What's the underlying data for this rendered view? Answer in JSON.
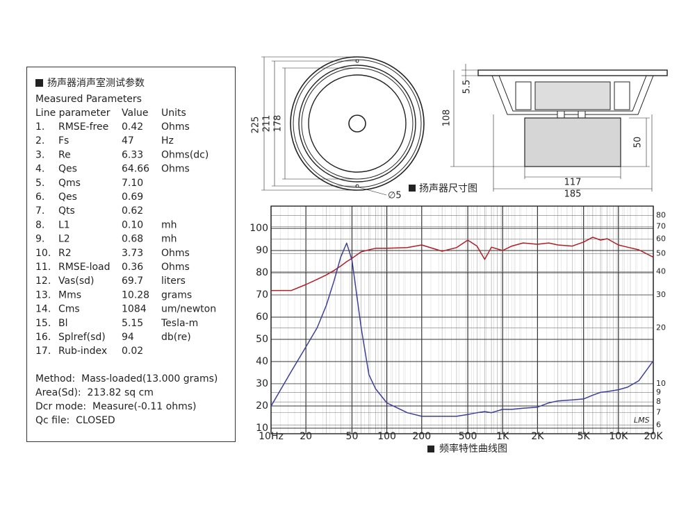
{
  "parameters": {
    "title": "扬声器消声室测试参数",
    "subtitle": "Measured Parameters",
    "header": [
      "Line parameter",
      "Value",
      "Units"
    ],
    "rows": [
      [
        "1.",
        "RMSE-free",
        "0.42",
        "Ohms"
      ],
      [
        "2.",
        "Fs",
        "47",
        "Hz"
      ],
      [
        "3.",
        "Re",
        "6.33",
        "Ohms(dc)"
      ],
      [
        "4.",
        "Qes",
        "64.66",
        "Ohms"
      ],
      [
        "5.",
        "Qms",
        "7.10",
        ""
      ],
      [
        "6.",
        "Qes",
        "0.69",
        ""
      ],
      [
        "7.",
        "Qts",
        "0.62",
        ""
      ],
      [
        "8.",
        "L1",
        "0.10",
        "mh"
      ],
      [
        "9.",
        "L2",
        "0.68",
        "mh"
      ],
      [
        "10.",
        "R2",
        "3.73",
        "Ohms"
      ],
      [
        "11.",
        "RMSE-load",
        "0.36",
        "Ohms"
      ],
      [
        "12.",
        "Vas(sd)",
        "69.7",
        "liters"
      ],
      [
        "13.",
        "Mms",
        "10.28",
        "grams"
      ],
      [
        "14.",
        "Cms",
        "1084",
        "um/newton"
      ],
      [
        "15.",
        "Bl",
        "5.15",
        "Tesla-m"
      ],
      [
        "16.",
        "Splref(sd)",
        "94",
        "db(re)"
      ],
      [
        "17.",
        "Rub-index",
        "0.02",
        ""
      ]
    ],
    "notes": [
      "Method:  Mass-loaded(13.000 grams)",
      "Area(Sd):  213.82 sq cm",
      "Dcr mode:  Measure(-0.11 ohms)",
      "Qc file:  CLOSED"
    ]
  },
  "dimensions": {
    "caption": "扬声器尺寸图",
    "outer": "225",
    "mount": "211",
    "cone": "178",
    "hole": "∅5",
    "flange": "5.5",
    "depth": "108",
    "magnet_height": "50",
    "magnet_width": "117",
    "width": "185"
  },
  "chart_data": {
    "type": "line",
    "title": "频率特性曲线图",
    "watermark": "LMS",
    "log_x": true,
    "log_y2": true,
    "grid": true,
    "x": [
      10,
      15,
      20,
      25,
      30,
      35,
      40,
      45,
      50,
      60,
      70,
      80,
      100,
      150,
      200,
      300,
      400,
      500,
      600,
      700,
      800,
      1000,
      1200,
      1500,
      2000,
      2500,
      3000,
      4000,
      5000,
      6000,
      7000,
      8000,
      10000,
      12000,
      15000,
      20000
    ],
    "xlim": [
      10,
      20000
    ],
    "xticks": [
      {
        "value": 10,
        "label": "10Hz"
      },
      20,
      50,
      100,
      200,
      500,
      {
        "value": 1000,
        "label": "1K"
      },
      {
        "value": 2000,
        "label": "2K"
      },
      {
        "value": 5000,
        "label": "5K"
      },
      {
        "value": 10000,
        "label": "10K"
      },
      {
        "value": 20000,
        "label": "20K"
      }
    ],
    "ylim": [
      7.5,
      110
    ],
    "yticks": [
      10,
      20,
      30,
      40,
      50,
      60,
      70,
      80,
      90,
      100
    ],
    "y2lim": [
      5.4,
      90
    ],
    "y2ticks": [
      6,
      7,
      8,
      9,
      10,
      20,
      30,
      40,
      50,
      60,
      70,
      80
    ],
    "series": [
      {
        "color": "#b01e23",
        "values": [
          72,
          72,
          74.7,
          77,
          79,
          81,
          83,
          85,
          86.5,
          89.4,
          90.3,
          91,
          91,
          91.3,
          92.5,
          89.7,
          91.3,
          94.7,
          92,
          86,
          91.5,
          90,
          92,
          93.4,
          92.8,
          93.4,
          92.5,
          92,
          93.8,
          96,
          94.7,
          95.3,
          92.5,
          91.5,
          90.3,
          87
        ]
      },
      {
        "color": "#3b3f99",
        "axis": "y2",
        "values": [
          7.6,
          11.7,
          15.8,
          20,
          26.4,
          35.7,
          48,
          57,
          46,
          20,
          11.2,
          9.4,
          7.9,
          7,
          6.7,
          6.7,
          6.7,
          6.85,
          7,
          7.1,
          7,
          7.3,
          7.3,
          7.4,
          7.5,
          7.9,
          8.1,
          8.2,
          8.3,
          8.7,
          9,
          9.1,
          9.3,
          9.6,
          10.4,
          13.3
        ]
      }
    ]
  }
}
